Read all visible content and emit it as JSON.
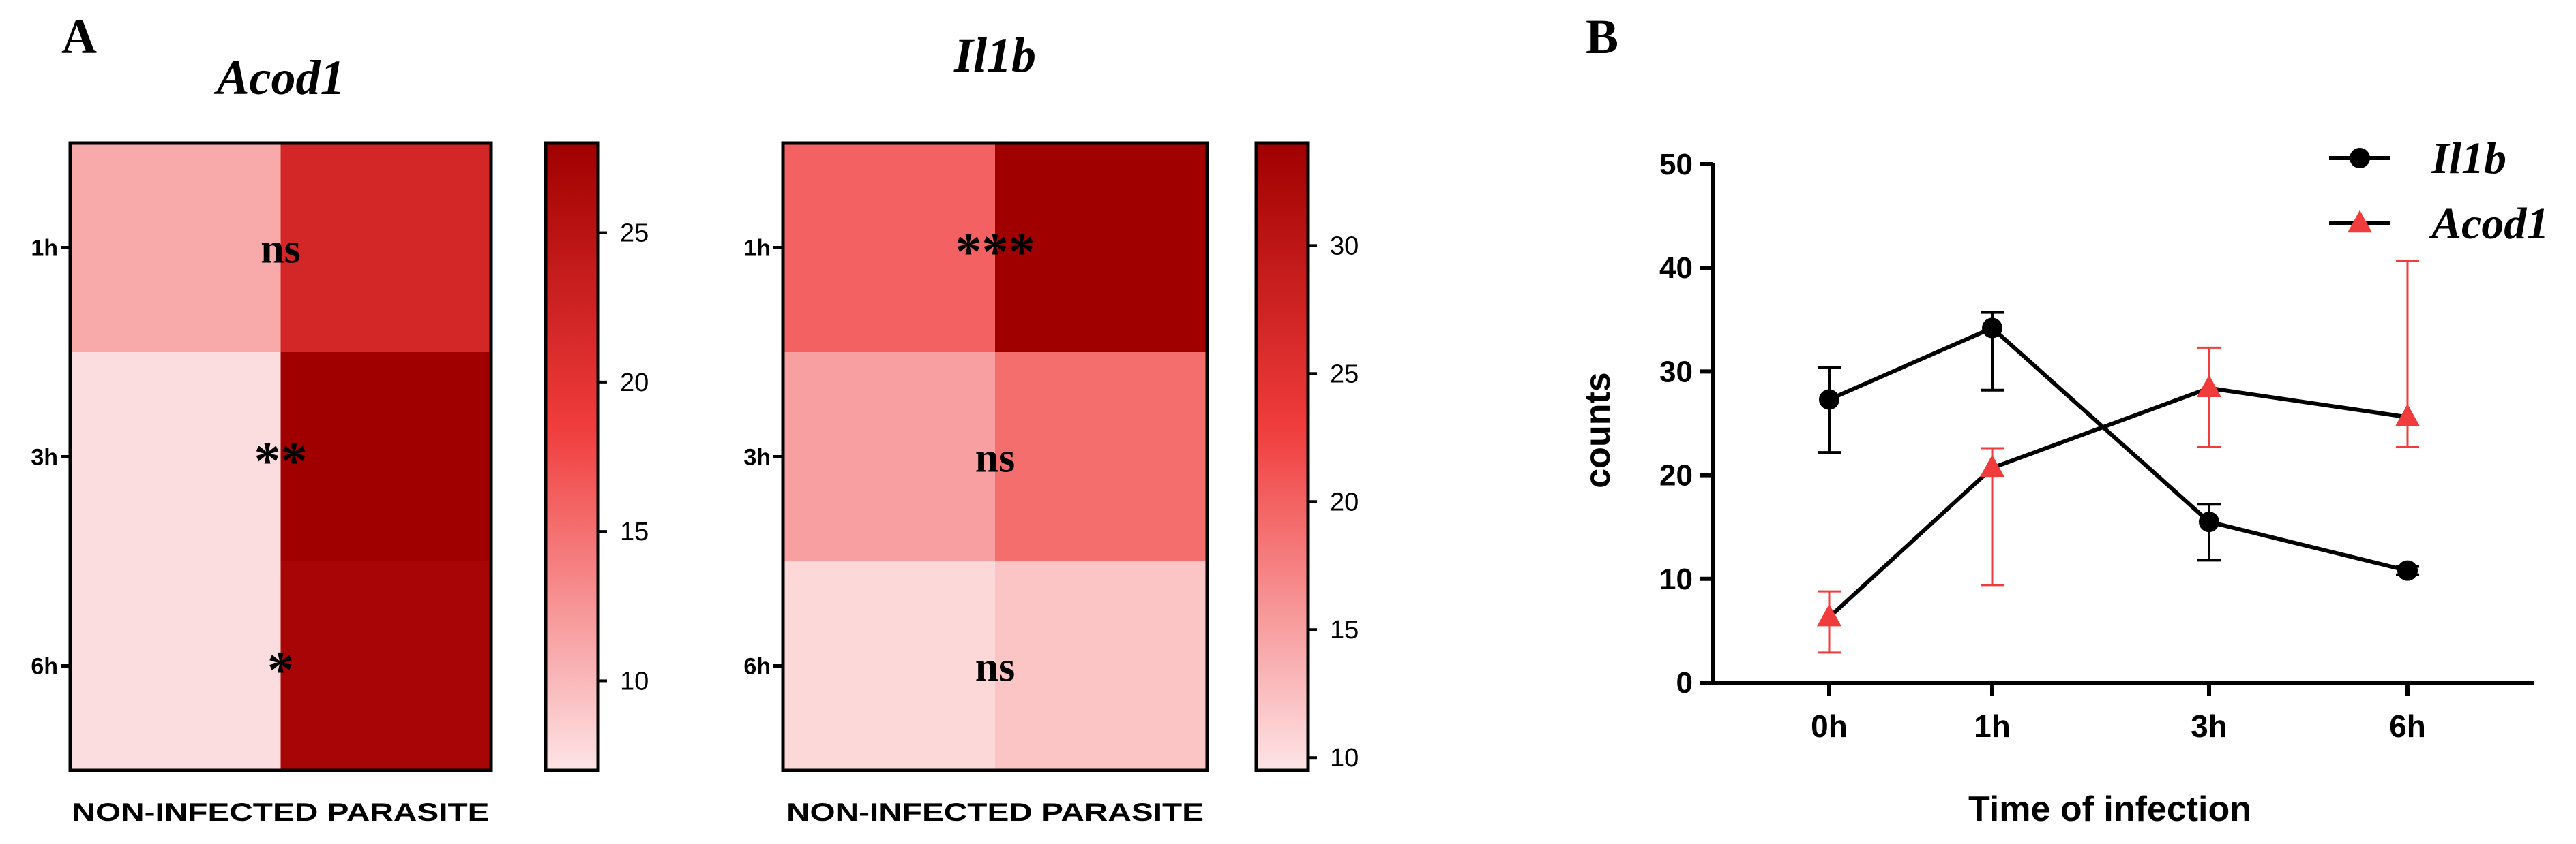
{
  "panel_labels": {
    "a": "A",
    "b": "B"
  },
  "chart_data": [
    {
      "type": "heatmap",
      "title": "Acod1",
      "x_categories": [
        "NON-INFECTED",
        "PARASITE"
      ],
      "y_categories": [
        "1h",
        "3h",
        "6h"
      ],
      "values": [
        [
          11,
          22
        ],
        [
          7.5,
          28
        ],
        [
          7.5,
          27
        ]
      ],
      "annotations": [
        "ns",
        "**",
        "*"
      ],
      "colorbar": {
        "min": 7,
        "max": 28,
        "ticks": [
          10,
          15,
          20,
          25
        ]
      },
      "colors": {
        "low": "#fde4e6",
        "mid": "#f03c3c",
        "high": "#a00000"
      }
    },
    {
      "type": "heatmap",
      "title": "Il1b",
      "x_categories": [
        "NON-INFECTED",
        "PARASITE"
      ],
      "y_categories": [
        "1h",
        "3h",
        "6h"
      ],
      "values": [
        [
          20,
          34
        ],
        [
          15,
          19
        ],
        [
          10.5,
          12
        ]
      ],
      "annotations": [
        "***",
        "ns",
        "ns"
      ],
      "colorbar": {
        "min": 9.5,
        "max": 34,
        "ticks": [
          10,
          15,
          20,
          25,
          30
        ]
      },
      "colors": {
        "low": "#fde4e6",
        "mid": "#f03c3c",
        "high": "#a00000"
      }
    },
    {
      "type": "line",
      "title": "",
      "xlabel": "Time of infection",
      "ylabel": "counts",
      "categories": [
        "0h",
        "1h",
        "3h",
        "6h"
      ],
      "ylim": [
        0,
        50
      ],
      "yticks": [
        0,
        10,
        20,
        30,
        40,
        50
      ],
      "legend_position": "top-right",
      "series": [
        {
          "name": "Il1b",
          "marker": "circle",
          "color": "#000000",
          "values": [
            27.3,
            34.2,
            15.5,
            10.8
          ],
          "err_low": [
            22.2,
            28.2,
            11.8,
            10.4
          ],
          "err_high": [
            30.4,
            35.7,
            17.2,
            11.2
          ]
        },
        {
          "name": "Acod1",
          "marker": "triangle",
          "color": "#f03c3c",
          "values": [
            6.3,
            20.7,
            28.4,
            25.6
          ],
          "err_low": [
            2.9,
            9.4,
            22.7,
            22.7
          ],
          "err_high": [
            8.8,
            22.6,
            32.3,
            40.7
          ]
        }
      ]
    }
  ]
}
